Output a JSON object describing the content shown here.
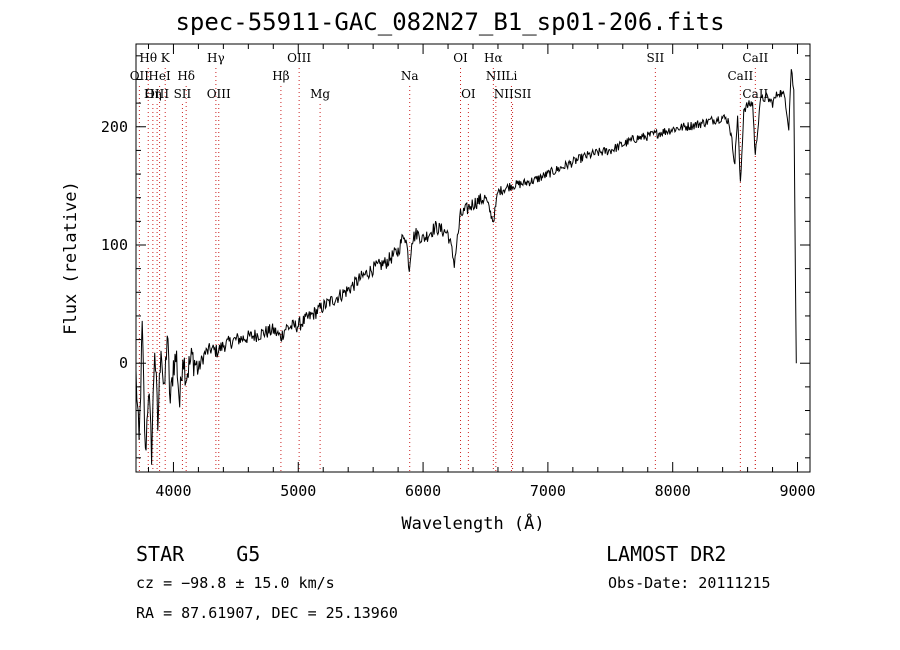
{
  "chart_data": {
    "type": "line",
    "title": "spec-55911-GAC_082N27_B1_sp01-206.fits",
    "xlabel": "Wavelength (Å)",
    "ylabel": "Flux (relative)",
    "xlim": [
      3700,
      9100
    ],
    "ylim": [
      -92,
      270
    ],
    "x_ticks": [
      4000,
      5000,
      6000,
      7000,
      8000,
      9000
    ],
    "y_ticks": [
      0,
      100,
      200
    ],
    "grid": false,
    "series": [
      {
        "x": [
          3700,
          3725,
          3750,
          3775,
          3800,
          3825,
          3850,
          3875,
          3900,
          3925,
          3950,
          3975,
          4000,
          4025,
          4050,
          4075,
          4100,
          4150,
          4200,
          4250,
          4300,
          4350,
          4400,
          4500,
          4600,
          4700,
          4800,
          4861,
          4900,
          5000,
          5100,
          5200,
          5300,
          5400,
          5500,
          5600,
          5700,
          5800,
          5850,
          5870,
          5890,
          5910,
          5950,
          6000,
          6100,
          6200,
          6250,
          6300,
          6350,
          6400,
          6500,
          6563,
          6600,
          6700,
          6800,
          6900,
          7000,
          7100,
          7200,
          7300,
          7400,
          7500,
          7600,
          7700,
          7800,
          7900,
          8000,
          8100,
          8200,
          8300,
          8400,
          8450,
          8498,
          8520,
          8542,
          8570,
          8600,
          8640,
          8662,
          8700,
          8750,
          8800,
          8850,
          8900,
          8930,
          8950,
          8970,
          8990
        ],
        "y": [
          -10,
          -70,
          30,
          -80,
          -20,
          -75,
          15,
          -55,
          20,
          -30,
          25,
          -35,
          0,
          5,
          -35,
          10,
          -10,
          5,
          -5,
          8,
          12,
          10,
          15,
          20,
          22,
          25,
          28,
          22,
          30,
          32,
          40,
          48,
          55,
          62,
          72,
          80,
          85,
          95,
          110,
          100,
          80,
          105,
          110,
          105,
          115,
          110,
          85,
          125,
          130,
          135,
          140,
          120,
          145,
          150,
          152,
          155,
          160,
          165,
          170,
          175,
          178,
          180,
          185,
          190,
          192,
          195,
          198,
          200,
          202,
          205,
          208,
          205,
          170,
          210,
          150,
          215,
          218,
          220,
          175,
          222,
          225,
          220,
          230,
          225,
          200,
          250,
          230,
          0
        ]
      }
    ],
    "lines": [
      {
        "label": "Hθ",
        "x": 3798,
        "row": 1
      },
      {
        "label": "K",
        "x": 3934,
        "row": 1
      },
      {
        "label": "OII",
        "x": 3727,
        "row": 2
      },
      {
        "label": "HeI",
        "x": 3889,
        "row": 2
      },
      {
        "label": "Hδ",
        "x": 4102,
        "row": 2
      },
      {
        "label": "OIII",
        "x": 3869,
        "row": 3
      },
      {
        "label": "Hη",
        "x": 3835,
        "row": 3
      },
      {
        "label": "SII",
        "x": 4072,
        "row": 3
      },
      {
        "label": "Hγ",
        "x": 4340,
        "row": 1
      },
      {
        "label": "OIII",
        "x": 4363,
        "row": 3
      },
      {
        "label": "Hβ",
        "x": 4861,
        "row": 2
      },
      {
        "label": "OIII",
        "x": 5007,
        "row": 1
      },
      {
        "label": "Mg",
        "x": 5175,
        "row": 3
      },
      {
        "label": "Na",
        "x": 5893,
        "row": 2
      },
      {
        "label": "OI",
        "x": 6300,
        "row": 1
      },
      {
        "label": "OI",
        "x": 6363,
        "row": 3
      },
      {
        "label": "Hα",
        "x": 6563,
        "row": 1
      },
      {
        "label": "NII",
        "x": 6583,
        "row": 2
      },
      {
        "label": "NIISII",
        "x": 6717,
        "row": 3
      },
      {
        "label": "Li",
        "x": 6708,
        "row": 2
      },
      {
        "label": "SII",
        "x": 7861,
        "row": 1
      },
      {
        "label": "CaII",
        "x": 8662,
        "row": 1
      },
      {
        "label": "CaII",
        "x": 8542,
        "row": 2
      },
      {
        "label": "CaII",
        "x": 8662,
        "row": 3
      }
    ],
    "colors": {
      "spectrum": "#000000",
      "line_markers": "#cc2222",
      "axes": "#000000"
    }
  },
  "info": {
    "object_class": "STAR",
    "subclass": "G5",
    "survey": "LAMOST DR2",
    "cz": "cz = −98.8 ± 15.0 km/s",
    "obs_date": "Obs-Date: 20111215",
    "coords": "RA =  87.61907, DEC =  25.13960"
  }
}
